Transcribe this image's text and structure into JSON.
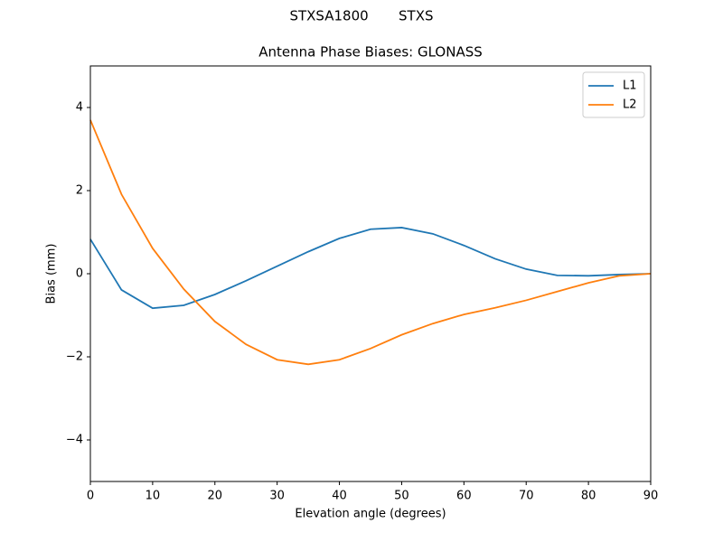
{
  "chart_data": {
    "type": "line",
    "suptitle": "STXSA1800       STXS",
    "title": "Antenna Phase Biases: GLONASS",
    "x_label": "Elevation angle (degrees)",
    "y_label": "Bias (mm)",
    "x": [
      0,
      5,
      10,
      15,
      20,
      25,
      30,
      35,
      40,
      45,
      50,
      55,
      60,
      65,
      70,
      75,
      80,
      85,
      90
    ],
    "series": [
      {
        "name": "L1",
        "color": "#1f77b4",
        "values": [
          0.83,
          -0.39,
          -0.83,
          -0.76,
          -0.5,
          -0.17,
          0.18,
          0.53,
          0.85,
          1.07,
          1.11,
          0.96,
          0.68,
          0.36,
          0.11,
          -0.04,
          -0.05,
          -0.02,
          0
        ]
      },
      {
        "name": "L2",
        "color": "#ff7f0e",
        "values": [
          3.7,
          1.91,
          0.61,
          -0.37,
          -1.15,
          -1.7,
          -2.07,
          -2.18,
          -2.07,
          -1.8,
          -1.47,
          -1.2,
          -0.98,
          -0.82,
          -0.64,
          -0.43,
          -0.22,
          -0.05,
          0
        ]
      }
    ],
    "xlim": [
      0,
      90
    ],
    "xticks": [
      0,
      10,
      20,
      30,
      40,
      50,
      60,
      70,
      80,
      90
    ],
    "ylim": [
      -5,
      5
    ],
    "yticks": [
      {
        "value": -4,
        "label": "−4"
      },
      {
        "value": -2,
        "label": "−2"
      },
      0,
      2,
      4
    ],
    "legend": "upper-right",
    "grid": false
  }
}
